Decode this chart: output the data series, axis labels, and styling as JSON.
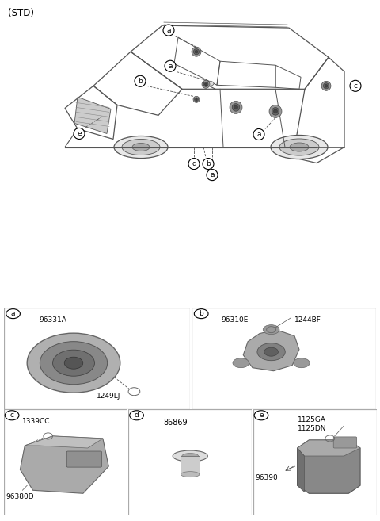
{
  "title": "(STD)",
  "bg_color": "#ffffff",
  "line_color": "#555555",
  "text_color": "#000000",
  "grid_color": "#aaaaaa",
  "parts": {
    "a": {
      "code": "96331A",
      "part": "1249LJ"
    },
    "b": {
      "code": "96310E",
      "part": "1244BF"
    },
    "c": {
      "code": "96380D",
      "part": "1339CC"
    },
    "d": {
      "code": "86869",
      "part": null
    },
    "e": {
      "code": "96390",
      "part1": "1125GA",
      "part2": "1125DN"
    }
  }
}
